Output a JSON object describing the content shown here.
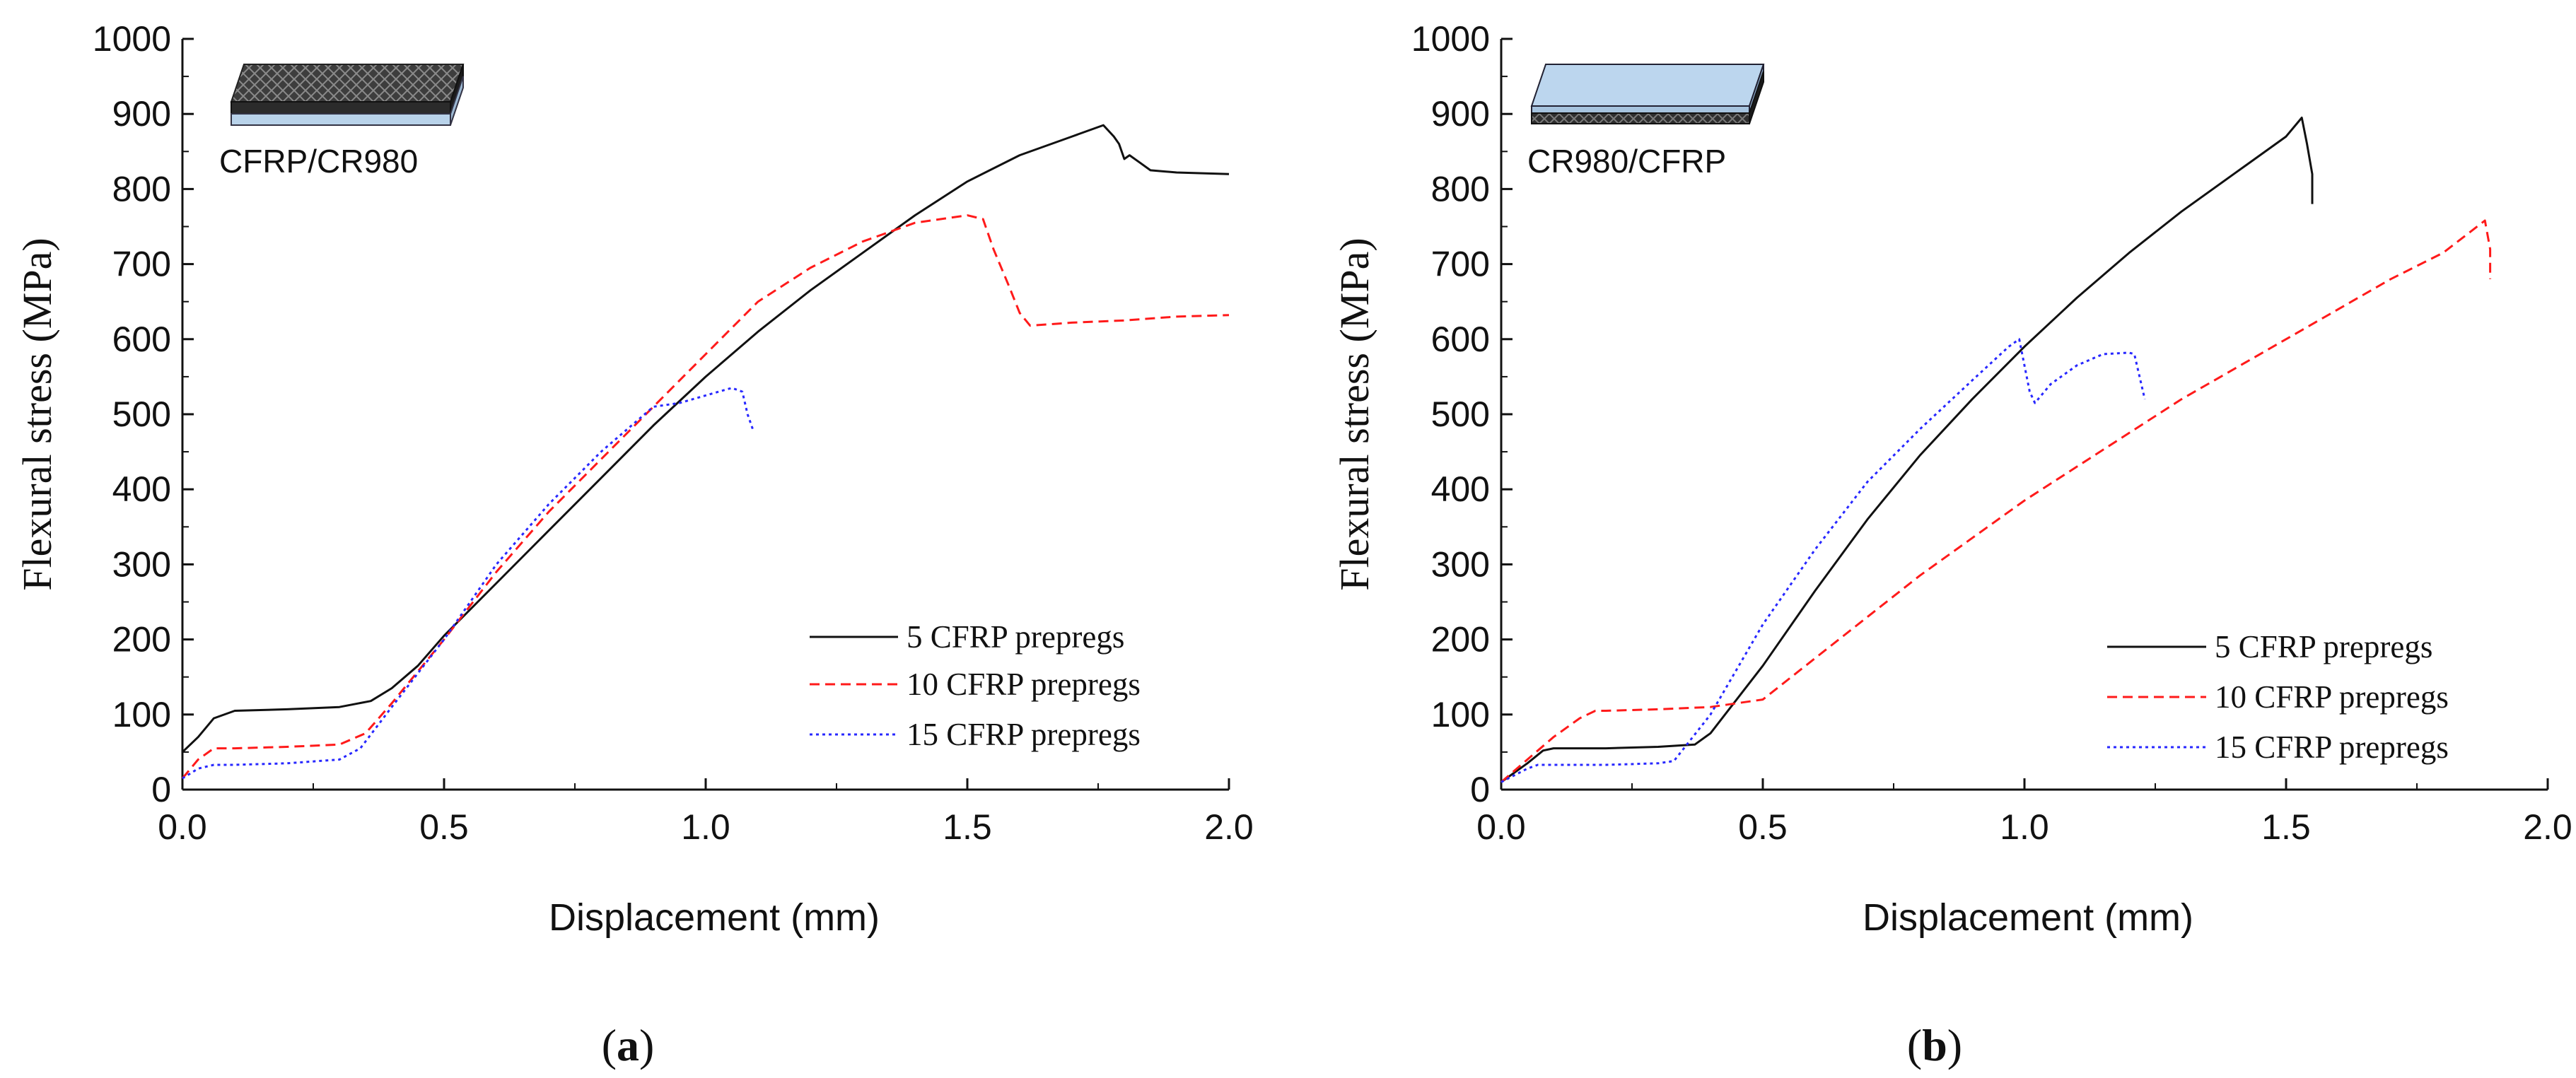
{
  "colors": {
    "s5": "#111111",
    "s10": "#ff1a1a",
    "s15": "#2828ff",
    "metal": "#b9d3ea",
    "cfrp": "#3a3a3a"
  },
  "chart_data": [
    {
      "type": "line",
      "panel_label": {
        "open": "(",
        "letter": "a",
        "close": ")"
      },
      "inset_label": "CFRP/CR980",
      "inset_icon": "cfrp-top-laminate",
      "xlabel": "Displacement (mm)",
      "ylabel": "Flexural stress (MPa)",
      "xlim": [
        0,
        2
      ],
      "ylim": [
        0,
        1000
      ],
      "xticks": [
        "0.0",
        "0.5",
        "1.0",
        "1.5",
        "2.0"
      ],
      "yticks": [
        "0",
        "100",
        "200",
        "300",
        "400",
        "500",
        "600",
        "700",
        "800",
        "900",
        "1000"
      ],
      "legend_position": "bottom-right",
      "series": [
        {
          "name": "5 CFRP prepregs",
          "style": "solid",
          "color": "#111111",
          "x": [
            0,
            0.03,
            0.06,
            0.1,
            0.2,
            0.3,
            0.36,
            0.4,
            0.45,
            0.5,
            0.6,
            0.7,
            0.8,
            0.9,
            1.0,
            1.1,
            1.2,
            1.3,
            1.4,
            1.5,
            1.6,
            1.7,
            1.76,
            1.78,
            1.79,
            1.8,
            1.81,
            1.83,
            1.85,
            1.9,
            2.0
          ],
          "y": [
            50,
            70,
            95,
            105,
            107,
            110,
            118,
            135,
            165,
            205,
            275,
            345,
            415,
            485,
            550,
            610,
            665,
            715,
            765,
            810,
            845,
            870,
            885,
            870,
            860,
            840,
            845,
            835,
            825,
            822,
            820
          ]
        },
        {
          "name": "10 CFRP prepregs",
          "style": "dashed",
          "color": "#ff1a1a",
          "x": [
            0,
            0.03,
            0.06,
            0.1,
            0.2,
            0.3,
            0.35,
            0.4,
            0.5,
            0.6,
            0.7,
            0.8,
            0.9,
            1.0,
            1.1,
            1.2,
            1.3,
            1.4,
            1.45,
            1.5,
            1.53,
            1.55,
            1.58,
            1.6,
            1.62,
            1.7,
            1.8,
            1.9,
            2.0
          ],
          "y": [
            15,
            40,
            55,
            55,
            57,
            60,
            75,
            115,
            200,
            290,
            370,
            440,
            510,
            580,
            650,
            695,
            730,
            755,
            760,
            765,
            760,
            720,
            670,
            635,
            618,
            622,
            625,
            630,
            632
          ]
        },
        {
          "name": "15 CFRP prepregs",
          "style": "dotted",
          "color": "#2828ff",
          "x": [
            0,
            0.03,
            0.06,
            0.1,
            0.2,
            0.3,
            0.34,
            0.4,
            0.5,
            0.6,
            0.7,
            0.8,
            0.9,
            0.95,
            1.0,
            1.05,
            1.07,
            1.08,
            1.09
          ],
          "y": [
            15,
            28,
            33,
            33,
            35,
            40,
            55,
            110,
            200,
            300,
            380,
            450,
            510,
            515,
            525,
            535,
            530,
            500,
            480
          ]
        }
      ]
    },
    {
      "type": "line",
      "panel_label": {
        "open": "(",
        "letter": "b",
        "close": ")"
      },
      "inset_label": "CR980/CFRP",
      "inset_icon": "metal-top-laminate",
      "xlabel": "Displacement (mm)",
      "ylabel": "Flexural stress (MPa)",
      "xlim": [
        0,
        2
      ],
      "ylim": [
        0,
        1000
      ],
      "xticks": [
        "0.0",
        "0.5",
        "1.0",
        "1.5",
        "2.0"
      ],
      "yticks": [
        "0",
        "100",
        "200",
        "300",
        "400",
        "500",
        "600",
        "700",
        "800",
        "900",
        "1000"
      ],
      "legend_position": "bottom-right",
      "series": [
        {
          "name": "5 CFRP prepregs",
          "style": "solid",
          "color": "#111111",
          "x": [
            0,
            0.05,
            0.08,
            0.1,
            0.2,
            0.3,
            0.37,
            0.4,
            0.5,
            0.6,
            0.7,
            0.8,
            0.9,
            1.0,
            1.1,
            1.2,
            1.3,
            1.4,
            1.5,
            1.53,
            1.54,
            1.55,
            1.55
          ],
          "y": [
            10,
            35,
            52,
            55,
            55,
            57,
            60,
            75,
            165,
            265,
            360,
            445,
            520,
            590,
            655,
            715,
            770,
            820,
            870,
            895,
            860,
            820,
            780
          ]
        },
        {
          "name": "10 CFRP prepregs",
          "style": "dashed",
          "color": "#ff1a1a",
          "x": [
            0,
            0.05,
            0.1,
            0.15,
            0.18,
            0.2,
            0.3,
            0.4,
            0.5,
            0.6,
            0.7,
            0.8,
            0.9,
            1.0,
            1.1,
            1.2,
            1.3,
            1.4,
            1.5,
            1.6,
            1.7,
            1.8,
            1.88,
            1.89,
            1.89
          ],
          "y": [
            10,
            40,
            70,
            95,
            105,
            105,
            107,
            110,
            120,
            175,
            230,
            285,
            335,
            385,
            430,
            475,
            520,
            560,
            600,
            640,
            680,
            715,
            758,
            720,
            680
          ]
        },
        {
          "name": "15 CFRP prepregs",
          "style": "dotted",
          "color": "#2828ff",
          "x": [
            0,
            0.05,
            0.07,
            0.1,
            0.2,
            0.3,
            0.33,
            0.4,
            0.5,
            0.6,
            0.7,
            0.8,
            0.9,
            0.97,
            0.99,
            1.01,
            1.02,
            1.05,
            1.1,
            1.15,
            1.2,
            1.21,
            1.22,
            1.23
          ],
          "y": [
            10,
            28,
            33,
            33,
            33,
            35,
            38,
            100,
            220,
            320,
            410,
            480,
            545,
            590,
            600,
            530,
            515,
            540,
            565,
            580,
            582,
            580,
            550,
            520
          ]
        }
      ]
    }
  ]
}
